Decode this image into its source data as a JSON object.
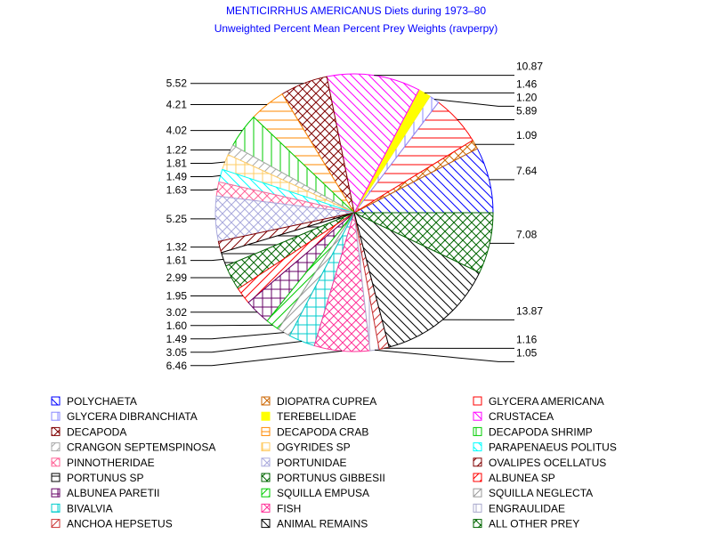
{
  "chart_data": {
    "type": "pie",
    "title": "MENTICIRRHUS AMERICANUS Diets during 1973–80",
    "subtitle": "Unweighted Percent Mean Percent Prey  Weights (ravperpy)",
    "legend_position": "bottom",
    "slices": [
      {
        "name": "POLYCHAETA",
        "value": 7.64,
        "label": "7.64",
        "color": "#0000ff",
        "pattern": "diag-down"
      },
      {
        "name": "DIOPATRA CUPREA",
        "value": 1.09,
        "label": "1.09",
        "color": "#cc6600",
        "pattern": "cross-diag"
      },
      {
        "name": "GLYCERA AMERICANA",
        "value": 5.89,
        "label": "5.89",
        "color": "#ff0000",
        "pattern": "horizontal"
      },
      {
        "name": "GLYCERA DIBRANCHIATA",
        "value": 1.2,
        "label": "1.20",
        "color": "#8888ff",
        "pattern": "vertical"
      },
      {
        "name": "TEREBELLIDAE",
        "value": 1.46,
        "label": "1.46",
        "color": "#ffff00",
        "pattern": "solid"
      },
      {
        "name": "CRUSTACEA",
        "value": 10.87,
        "label": "10.87",
        "color": "#ff00ff",
        "pattern": "diag-down"
      },
      {
        "name": "DECAPODA",
        "value": 5.52,
        "label": "5.52",
        "color": "#800000",
        "pattern": "cross-diag"
      },
      {
        "name": "DECAPODA CRAB",
        "value": 4.21,
        "label": "4.21",
        "color": "#ff8800",
        "pattern": "horizontal"
      },
      {
        "name": "DECAPODA SHRIMP",
        "value": 4.02,
        "label": "4.02",
        "color": "#00cc00",
        "pattern": "vertical"
      },
      {
        "name": "CRANGON SEPTEMSPINOSA",
        "value": 1.22,
        "label": "1.22",
        "color": "#aaaaaa",
        "pattern": "diag-up"
      },
      {
        "name": "OGYRIDES SP",
        "value": 1.81,
        "label": "1.81",
        "color": "#ffcc66",
        "pattern": "cross"
      },
      {
        "name": "PARAPENAEUS POLITUS",
        "value": 1.49,
        "label": "1.49",
        "color": "#00ffff",
        "pattern": "diag-down"
      },
      {
        "name": "PINNOTHERIDAE",
        "value": 1.63,
        "label": "1.63",
        "color": "#ff6699",
        "pattern": "cross-diag"
      },
      {
        "name": "PORTUNIDAE",
        "value": 5.25,
        "label": "5.25",
        "color": "#aaaadd",
        "pattern": "cross-diag"
      },
      {
        "name": "OVALIPES OCELLATUS",
        "value": 1.32,
        "label": "1.32",
        "color": "#800000",
        "pattern": "diag-up"
      },
      {
        "name": "PORTUNUS SP",
        "value": 1.61,
        "label": "1.61",
        "color": "#000000",
        "pattern": "horizontal"
      },
      {
        "name": "PORTUNUS GIBBESII",
        "value": 2.99,
        "label": "2.99",
        "color": "#006600",
        "pattern": "cross-diag"
      },
      {
        "name": "ALBUNEA SP",
        "value": 1.95,
        "label": "1.95",
        "color": "#ff0000",
        "pattern": "diag-up"
      },
      {
        "name": "ALBUNEA PARETII",
        "value": 3.02,
        "label": "3.02",
        "color": "#660066",
        "pattern": "cross"
      },
      {
        "name": "SQUILLA EMPUSA",
        "value": 1.6,
        "label": "1.60",
        "color": "#00cc00",
        "pattern": "diag-up"
      },
      {
        "name": "SQUILLA NEGLECTA",
        "value": 1.49,
        "label": "1.49",
        "color": "#999999",
        "pattern": "diag-up"
      },
      {
        "name": "BIVALVIA",
        "value": 3.05,
        "label": "3.05",
        "color": "#00cccc",
        "pattern": "cross"
      },
      {
        "name": "FISH",
        "value": 6.46,
        "label": "6.46",
        "color": "#ff3399",
        "pattern": "cross-diag"
      },
      {
        "name": "ENGRAULIDAE",
        "value": 1.05,
        "label": "1.05",
        "color": "#aaaacc",
        "pattern": "vertical"
      },
      {
        "name": "ANCHOA HEPSETUS",
        "value": 1.16,
        "label": "1.16",
        "color": "#cc3333",
        "pattern": "diag-up"
      },
      {
        "name": "ANIMAL REMAINS",
        "value": 13.87,
        "label": "13.87",
        "color": "#000000",
        "pattern": "diag-down"
      },
      {
        "name": "ALL OTHER PREY",
        "value": 7.08,
        "label": "7.08",
        "color": "#006600",
        "pattern": "cross-diag"
      }
    ]
  }
}
